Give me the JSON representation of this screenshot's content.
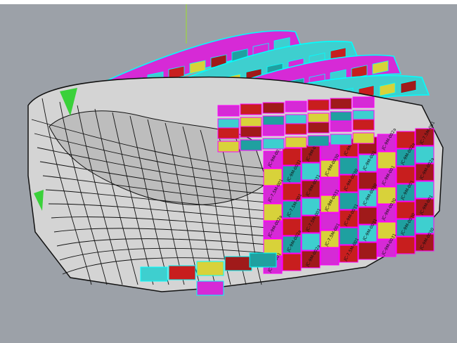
{
  "viewport": {
    "background": "#9ca1a8",
    "shell_color": "#d4d4d4",
    "edge_color": "#111111",
    "axis_color": "#9be02a",
    "panel_colors": [
      "#d62ad6",
      "#3ecfcf",
      "#c81e1e",
      "#d8d23a",
      "#a01a1a",
      "#1fa0a0"
    ],
    "panel_labels": [
      "JC-9M-0031",
      "JC-9M-0030",
      "JC-9M-001",
      "JC-9M-002a",
      "JC-7.5M-001"
    ]
  }
}
